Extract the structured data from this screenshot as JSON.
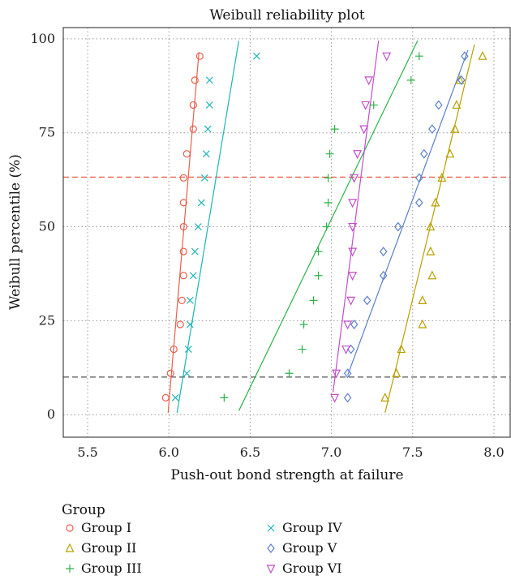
{
  "chart_data": {
    "type": "scatter",
    "title": "Weibull reliability plot",
    "xlabel": "Push-out bond strength at failure",
    "ylabel": "Weibull percentile (%)",
    "xlim": [
      5.35,
      8.1
    ],
    "ylim": [
      -6,
      103
    ],
    "xticks": [
      5.5,
      6.0,
      6.5,
      7.0,
      7.5,
      8.0
    ],
    "xtick_labels": [
      "5.5",
      "6.0",
      "6.5",
      "7.0",
      "7.5",
      "8.0"
    ],
    "yticks": [
      0,
      25,
      50,
      75,
      100
    ],
    "ytick_labels": [
      "0",
      "25",
      "50",
      "75",
      "100"
    ],
    "grid": true,
    "legend": {
      "title": "Group",
      "position": "bottom"
    },
    "reference_lines": [
      {
        "y": 63.2,
        "color": "#e8604c",
        "style": "dashed"
      },
      {
        "y": 10,
        "color": "#555555",
        "style": "dashed"
      }
    ],
    "percentiles": [
      4.5,
      11,
      17.4,
      24,
      30.4,
      37,
      43.4,
      50,
      56.4,
      63,
      69.4,
      76,
      82.4,
      89,
      95.4
    ],
    "series": [
      {
        "name": "Group I",
        "marker": "circle",
        "color": "#e8604c",
        "x": [
          5.98,
          6.01,
          6.03,
          6.07,
          6.08,
          6.09,
          6.09,
          6.09,
          6.09,
          6.09,
          6.11,
          6.15,
          6.15,
          6.16,
          6.19
        ],
        "fit": [
          [
            5.995,
            0.5
          ],
          [
            6.185,
            96.5
          ]
        ]
      },
      {
        "name": "Group II",
        "marker": "triangle",
        "color": "#b8a000",
        "x": [
          7.33,
          7.4,
          7.43,
          7.56,
          7.56,
          7.62,
          7.61,
          7.61,
          7.64,
          7.68,
          7.73,
          7.76,
          7.77,
          7.79,
          7.93
        ],
        "fit": [
          [
            7.33,
            0.5
          ],
          [
            7.88,
            98.5
          ]
        ]
      },
      {
        "name": "Group III",
        "marker": "plus",
        "color": "#2db348",
        "x": [
          6.34,
          6.74,
          6.82,
          6.83,
          6.89,
          6.92,
          6.92,
          6.97,
          6.98,
          6.98,
          6.99,
          7.02,
          7.26,
          7.49,
          7.54
        ],
        "fit": [
          [
            6.43,
            1.0
          ],
          [
            7.53,
            99.5
          ]
        ]
      },
      {
        "name": "Group IV",
        "marker": "cross",
        "color": "#1fb5b5",
        "x": [
          6.04,
          6.11,
          6.12,
          6.13,
          6.13,
          6.15,
          6.16,
          6.18,
          6.2,
          6.22,
          6.23,
          6.24,
          6.25,
          6.25,
          6.54
        ],
        "fit": [
          [
            6.05,
            0.5
          ],
          [
            6.43,
            99.5
          ]
        ]
      },
      {
        "name": "Group V",
        "marker": "diamond",
        "color": "#5b7fc8",
        "x": [
          7.1,
          7.1,
          7.12,
          7.14,
          7.22,
          7.32,
          7.32,
          7.41,
          7.54,
          7.54,
          7.57,
          7.62,
          7.66,
          7.8,
          7.82
        ],
        "fit": [
          [
            7.1,
            10.5
          ],
          [
            7.84,
            97.0
          ]
        ]
      },
      {
        "name": "Group VI",
        "marker": "triangle-down",
        "color": "#c24fc8",
        "x": [
          7.02,
          7.03,
          7.09,
          7.1,
          7.12,
          7.13,
          7.13,
          7.13,
          7.13,
          7.14,
          7.16,
          7.2,
          7.21,
          7.23,
          7.34
        ],
        "fit": [
          [
            7.01,
            6.0
          ],
          [
            7.29,
            99.5
          ]
        ]
      }
    ]
  }
}
